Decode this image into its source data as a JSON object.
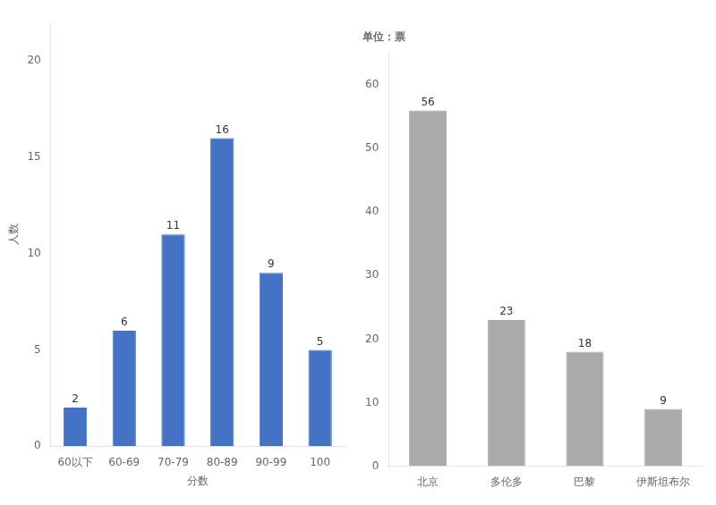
{
  "chart_data": [
    {
      "type": "bar",
      "categories": [
        "60以下",
        "60-69",
        "70-79",
        "80-89",
        "90-99",
        "100"
      ],
      "values": [
        2,
        6,
        11,
        16,
        9,
        5
      ],
      "color": "#4472C4",
      "ylim": [
        0,
        22
      ],
      "yticks": [
        0,
        5,
        10,
        15,
        20
      ],
      "xlabel": "分数",
      "ylabel": "人数",
      "data_labels": true,
      "grid": false
    },
    {
      "type": "bar",
      "title": "单位：票",
      "categories": [
        "北京",
        "多伦多",
        "巴黎",
        "伊斯坦布尔"
      ],
      "values": [
        56,
        23,
        18,
        9
      ],
      "color": "#aaaaaa",
      "ylim": [
        0,
        65
      ],
      "yticks": [
        0,
        10,
        20,
        30,
        40,
        50,
        60
      ],
      "data_labels": true,
      "grid": false
    }
  ]
}
